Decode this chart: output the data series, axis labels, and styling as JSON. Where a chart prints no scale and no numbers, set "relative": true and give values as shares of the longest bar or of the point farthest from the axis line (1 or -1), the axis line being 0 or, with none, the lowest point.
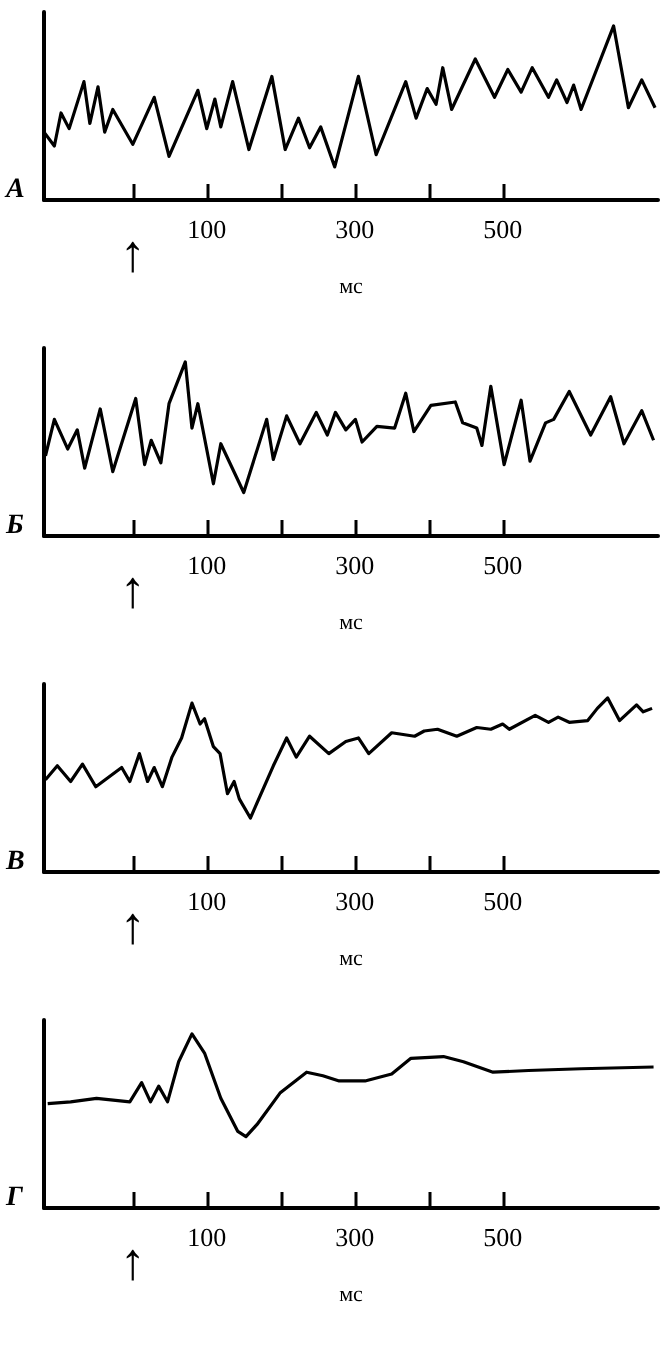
{
  "chart_data": [
    {
      "type": "line",
      "ylabel": "А",
      "xlabel": "мс",
      "relative": true,
      "color": "#000000",
      "x": [
        -120,
        -106,
        -97,
        -86,
        -66,
        -58,
        -47,
        -38,
        -27,
        0,
        29,
        49,
        88,
        100,
        111,
        119,
        135,
        157,
        188,
        206,
        224,
        239,
        254,
        273,
        305,
        329,
        369,
        383,
        398,
        410,
        419,
        431,
        463,
        489,
        507,
        525,
        540,
        562,
        573,
        587,
        596,
        606,
        650,
        670,
        688,
        706
      ],
      "values": [
        0.39,
        0.31,
        0.5,
        0.41,
        0.68,
        0.44,
        0.65,
        0.39,
        0.52,
        0.32,
        0.59,
        0.25,
        0.63,
        0.41,
        0.58,
        0.42,
        0.68,
        0.29,
        0.71,
        0.29,
        0.47,
        0.3,
        0.42,
        0.19,
        0.71,
        0.26,
        0.68,
        0.47,
        0.64,
        0.55,
        0.76,
        0.52,
        0.81,
        0.59,
        0.75,
        0.62,
        0.76,
        0.59,
        0.69,
        0.56,
        0.66,
        0.52,
        1.0,
        0.53,
        0.69,
        0.53
      ],
      "xlim": [
        -120,
        710
      ],
      "xticks": [
        {
          "value": 0,
          "label": null
        },
        100,
        {
          "value": 200,
          "label": null
        },
        300,
        {
          "value": 400,
          "label": null
        },
        500
      ],
      "annotations": [
        "↑"
      ],
      "tick_labels": "x",
      "marker": "none"
    },
    {
      "type": "line",
      "ylabel": "Б",
      "xlabel": "мс",
      "relative": true,
      "color": "#000000",
      "x": [
        -118,
        -106,
        -88,
        -75,
        -65,
        -44,
        -27,
        4,
        16,
        25,
        38,
        49,
        71,
        80,
        88,
        109,
        119,
        150,
        181,
        190,
        208,
        226,
        248,
        263,
        274,
        288,
        301,
        310,
        330,
        354,
        369,
        380,
        403,
        436,
        446,
        465,
        472,
        484,
        502,
        525,
        537,
        558,
        569,
        590,
        619,
        646,
        664,
        688,
        704
      ],
      "values": [
        0.46,
        0.67,
        0.5,
        0.61,
        0.39,
        0.73,
        0.37,
        0.79,
        0.41,
        0.55,
        0.42,
        0.76,
        1.0,
        0.62,
        0.76,
        0.3,
        0.53,
        0.25,
        0.67,
        0.44,
        0.69,
        0.53,
        0.71,
        0.58,
        0.71,
        0.61,
        0.67,
        0.54,
        0.63,
        0.62,
        0.82,
        0.6,
        0.75,
        0.77,
        0.65,
        0.62,
        0.52,
        0.86,
        0.41,
        0.78,
        0.43,
        0.65,
        0.67,
        0.83,
        0.58,
        0.8,
        0.53,
        0.72,
        0.55
      ],
      "xlim": [
        -120,
        710
      ],
      "xticks": [
        {
          "value": 0,
          "label": null
        },
        100,
        {
          "value": 200,
          "label": null
        },
        300,
        {
          "value": 400,
          "label": null
        },
        500
      ],
      "annotations": [
        "↑"
      ],
      "tick_labels": "x",
      "marker": "none"
    },
    {
      "type": "line",
      "ylabel": "В",
      "xlabel": "мс",
      "relative": true,
      "color": "#000000",
      "x": [
        -118,
        -102,
        -84,
        -68,
        -50,
        -15,
        -4,
        9,
        20,
        29,
        40,
        53,
        66,
        80,
        91,
        97,
        109,
        118,
        128,
        137,
        144,
        159,
        190,
        208,
        221,
        239,
        265,
        288,
        305,
        319,
        350,
        381,
        394,
        412,
        438,
        465,
        484,
        500,
        509,
        544,
        562,
        575,
        590,
        615,
        628,
        642,
        658,
        681,
        690,
        702
      ],
      "values": [
        0.53,
        0.61,
        0.52,
        0.62,
        0.49,
        0.6,
        0.52,
        0.68,
        0.52,
        0.6,
        0.49,
        0.66,
        0.77,
        0.97,
        0.85,
        0.88,
        0.72,
        0.68,
        0.45,
        0.52,
        0.42,
        0.31,
        0.61,
        0.77,
        0.66,
        0.78,
        0.68,
        0.75,
        0.77,
        0.68,
        0.8,
        0.78,
        0.81,
        0.82,
        0.78,
        0.83,
        0.82,
        0.85,
        0.82,
        0.9,
        0.86,
        0.89,
        0.86,
        0.87,
        0.94,
        1.0,
        0.87,
        0.96,
        0.92,
        0.94
      ],
      "xlim": [
        -120,
        710
      ],
      "xticks": [
        {
          "value": 0,
          "label": null
        },
        100,
        {
          "value": 200,
          "label": null
        },
        300,
        {
          "value": 400,
          "label": null
        },
        500
      ],
      "annotations": [
        "↑"
      ],
      "tick_labels": "x",
      "marker": "none"
    },
    {
      "type": "line",
      "ylabel": "Г",
      "xlabel": "мс",
      "relative": true,
      "color": "#000000",
      "x": [
        -115,
        -84,
        -49,
        -4,
        12,
        24,
        35,
        47,
        62,
        80,
        97,
        119,
        142,
        153,
        168,
        199,
        235,
        257,
        279,
        314,
        350,
        376,
        420,
        447,
        487,
        535,
        606,
        704
      ],
      "values": [
        0.6,
        0.61,
        0.63,
        0.61,
        0.72,
        0.61,
        0.7,
        0.61,
        0.84,
        1.0,
        0.89,
        0.63,
        0.44,
        0.41,
        0.48,
        0.66,
        0.78,
        0.76,
        0.73,
        0.73,
        0.77,
        0.86,
        0.87,
        0.84,
        0.78,
        0.79,
        0.8,
        0.81
      ],
      "xlim": [
        -120,
        710
      ],
      "xticks": [
        {
          "value": 0,
          "label": null
        },
        100,
        {
          "value": 200,
          "label": null
        },
        300,
        {
          "value": 400,
          "label": null
        },
        500
      ],
      "annotations": [
        "↑"
      ],
      "tick_labels": "x",
      "marker": "none"
    }
  ]
}
